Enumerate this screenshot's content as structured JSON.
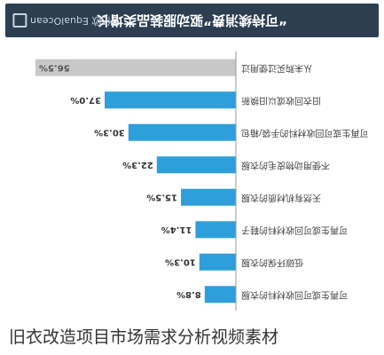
{
  "header": {
    "title": "“可持续消费”驱动服装品类增长",
    "brand_text": "亿欧 EqualOcean",
    "brand_icon": "logo-mark-icon",
    "background": "#2c3e50"
  },
  "chart_data": {
    "type": "bar",
    "orientation": "horizontal",
    "flipped": true,
    "title": "“可持续消费”驱动服装品类增长",
    "xlabel": "",
    "ylabel": "",
    "xlim": [
      0,
      60
    ],
    "grid": false,
    "categories": [
      "从未购买过使用过",
      "旧衣回收或以旧换新",
      "可再生或可回收材料的手袋/箱包",
      "不使用动物皮毛的衣服",
      "天然有机材质的衣服",
      "可再生或可回收材料的鞋子",
      "低碳环保的衣服",
      "可再生或可回收材料的衣服"
    ],
    "values": [
      56.5,
      37.0,
      30.3,
      22.3,
      15.5,
      11.4,
      10.3,
      8.8
    ],
    "value_labels": [
      "56.5%",
      "37.0%",
      "30.3%",
      "22.3%",
      "15.5%",
      "11.4%",
      "10.3%",
      "8.8%"
    ],
    "colors": [
      "#c8c8c8",
      "#2e9fdb",
      "#2e9fdb",
      "#2e9fdb",
      "#2e9fdb",
      "#2e9fdb",
      "#2e9fdb",
      "#2e9fdb"
    ]
  },
  "caption": {
    "text": "旧衣改造项目市场需求分析视频素材"
  }
}
